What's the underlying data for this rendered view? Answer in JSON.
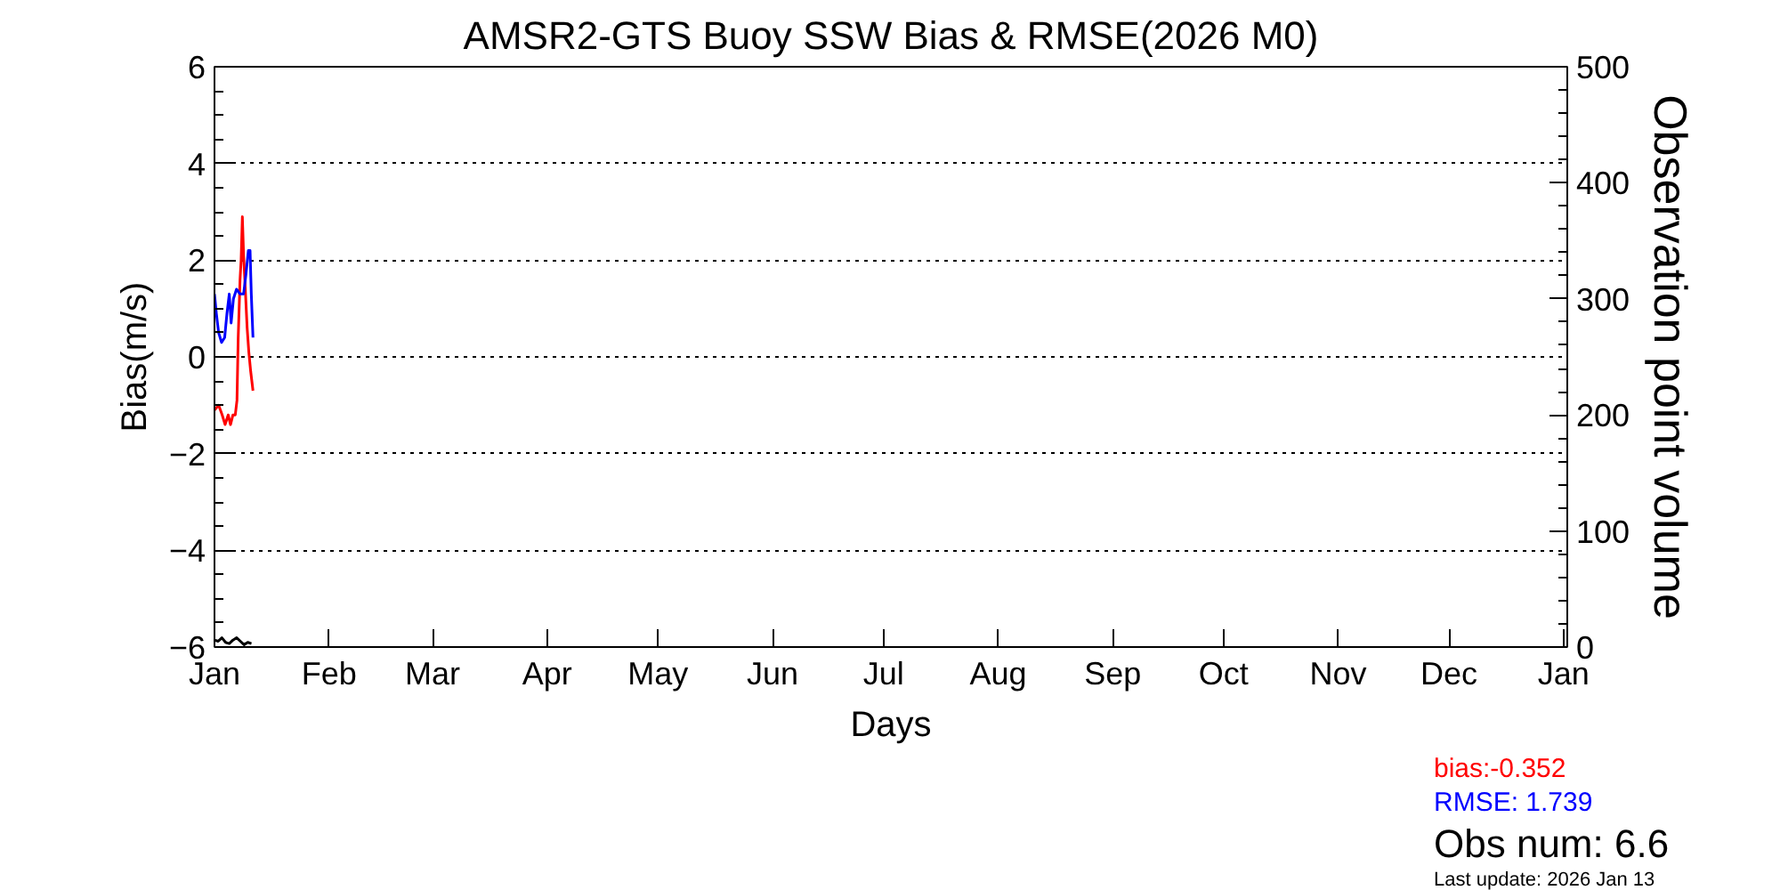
{
  "chart_data": {
    "type": "line",
    "title": "AMSR2-GTS Buoy SSW Bias & RMSE(2026 M0)",
    "xlabel": "Days",
    "ylabel": "Bias(m/s)",
    "y2label": "Observation point volume",
    "xlim": [
      "2026-01-01",
      "2027-01-02"
    ],
    "xticks": [
      {
        "value": "2026-01-01",
        "label": "Jan"
      },
      {
        "value": "2026-02-01",
        "label": "Feb"
      },
      {
        "value": "2026-03-01",
        "label": "Mar"
      },
      {
        "value": "2026-04-01",
        "label": "Apr"
      },
      {
        "value": "2026-05-01",
        "label": "May"
      },
      {
        "value": "2026-06-01",
        "label": "Jun"
      },
      {
        "value": "2026-07-01",
        "label": "Jul"
      },
      {
        "value": "2026-08-01",
        "label": "Aug"
      },
      {
        "value": "2026-09-01",
        "label": "Sep"
      },
      {
        "value": "2026-10-01",
        "label": "Oct"
      },
      {
        "value": "2026-11-01",
        "label": "Nov"
      },
      {
        "value": "2026-12-01",
        "label": "Dec"
      },
      {
        "value": "2027-01-01",
        "label": "Jan"
      }
    ],
    "ylim": [
      -6,
      6
    ],
    "yticks": [
      -6,
      -4,
      -2,
      0,
      2,
      4,
      6
    ],
    "y2lim": [
      0,
      500
    ],
    "y2ticks": [
      0,
      100,
      200,
      300,
      400,
      500
    ],
    "grid": "y",
    "line_style": "solid",
    "marker": "none",
    "series": [
      {
        "color": "#ff0000",
        "x": [
          "2026-01-01T00:00",
          "2026-01-02T03:00",
          "2026-01-03T02:00",
          "2026-01-03T21:00",
          "2026-01-04T17:00",
          "2026-01-05T08:00",
          "2026-01-06T00:00",
          "2026-01-06T15:00",
          "2026-01-07T02:00",
          "2026-01-07T10:00",
          "2026-01-07T22:00",
          "2026-01-08T05:00",
          "2026-01-08T13:00",
          "2026-01-08T21:00",
          "2026-01-09T08:00",
          "2026-01-09T20:00",
          "2026-01-10T07:00",
          "2026-01-10T19:00",
          "2026-01-11T10:00"
        ],
        "values": [
          -1.1,
          -1,
          -1.2,
          -1.4,
          -1.2,
          -1.4,
          -1.2,
          -1.2,
          -0.9,
          0.4,
          1.6,
          2,
          2.9,
          2.1,
          1.4,
          0.6,
          0.1,
          -0.3,
          -0.7
        ]
      },
      {
        "color": "#0000ff",
        "x": [
          "2026-01-01T00:00",
          "2026-01-01T12:00",
          "2026-01-02T03:00",
          "2026-01-02T22:00",
          "2026-01-03T18:00",
          "2026-01-04T09:00",
          "2026-01-05T00:00",
          "2026-01-05T12:00",
          "2026-01-06T03:00",
          "2026-01-06T23:00",
          "2026-01-07T22:00",
          "2026-01-08T21:00",
          "2026-01-09T12:00",
          "2026-01-10T04:00",
          "2026-01-10T15:00",
          "2026-01-10T23:00",
          "2026-01-11T10:00"
        ],
        "values": [
          1.3,
          0.9,
          0.5,
          0.3,
          0.4,
          0.9,
          1.3,
          0.7,
          1.2,
          1.4,
          1.3,
          1.3,
          1.7,
          2.2,
          2.2,
          1.3,
          0.4
        ]
      },
      {
        "color": "#000000",
        "axis": "y2",
        "x": [
          "2026-01-01",
          "2026-01-02",
          "2026-01-03",
          "2026-01-04",
          "2026-01-05",
          "2026-01-06",
          "2026-01-07",
          "2026-01-08",
          "2026-01-09",
          "2026-01-10",
          "2026-01-11"
        ],
        "values": [
          6,
          5,
          8,
          4,
          3,
          6,
          8,
          5,
          2,
          4,
          3
        ]
      }
    ],
    "annotations": [
      "bias:-0.352",
      "RMSE: 1.739",
      "Obs num:    6.6",
      "Last update: 2026 Jan 13"
    ]
  }
}
